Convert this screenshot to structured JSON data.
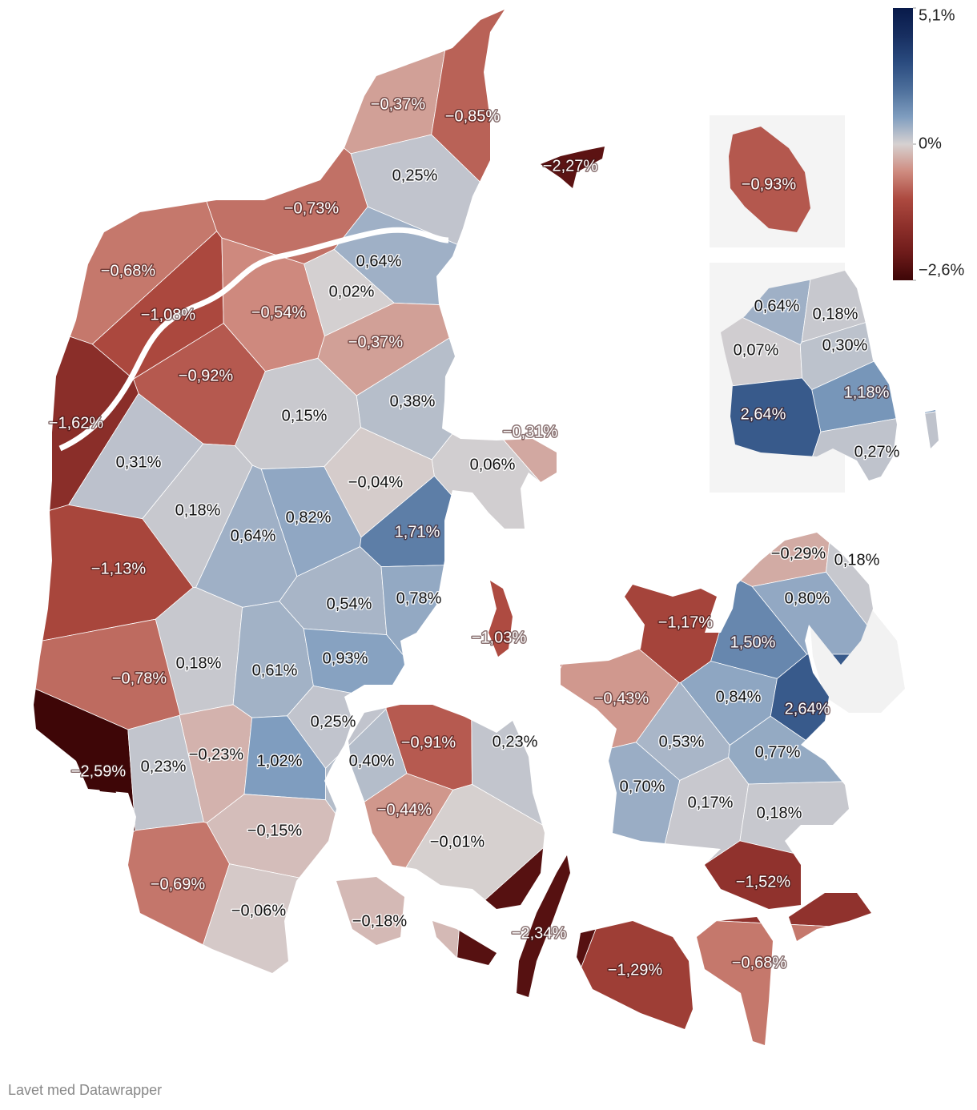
{
  "map": {
    "regions": [
      {
        "label": "−0,37%",
        "value": -0.37
      },
      {
        "label": "−0,85%",
        "value": -0.85
      },
      {
        "label": "0,25%",
        "value": 0.25
      },
      {
        "label": "−2,27%",
        "value": -2.27
      },
      {
        "label": "−0,93%",
        "value": -0.93
      },
      {
        "label": "−0,73%",
        "value": -0.73
      },
      {
        "label": "−0,68%",
        "value": -0.68
      },
      {
        "label": "0,64%",
        "value": 0.64
      },
      {
        "label": "−1,08%",
        "value": -1.08
      },
      {
        "label": "−0,54%",
        "value": -0.54
      },
      {
        "label": "0,02%",
        "value": 0.02
      },
      {
        "label": "−0,37%",
        "value": -0.37
      },
      {
        "label": "0,64%",
        "value": 0.64
      },
      {
        "label": "0,18%",
        "value": 0.18
      },
      {
        "label": "0,07%",
        "value": 0.07
      },
      {
        "label": "0,30%",
        "value": 0.3
      },
      {
        "label": "−0,92%",
        "value": -0.92
      },
      {
        "label": "0,38%",
        "value": 0.38
      },
      {
        "label": "1,18%",
        "value": 1.18
      },
      {
        "label": "−1,62%",
        "value": -1.62
      },
      {
        "label": "0,15%",
        "value": 0.15
      },
      {
        "label": "2,64%",
        "value": 2.64
      },
      {
        "label": "−0,31%",
        "value": -0.31
      },
      {
        "label": "0,27%",
        "value": 0.27
      },
      {
        "label": "0,31%",
        "value": 0.31
      },
      {
        "label": "0,06%",
        "value": 0.06
      },
      {
        "label": "−0,04%",
        "value": -0.04
      },
      {
        "label": "0,18%",
        "value": 0.18
      },
      {
        "label": "0,82%",
        "value": 0.82
      },
      {
        "label": "1,71%",
        "value": 1.71
      },
      {
        "label": "0,64%",
        "value": 0.64
      },
      {
        "label": "−0,29%",
        "value": -0.29
      },
      {
        "label": "0,18%",
        "value": 0.18
      },
      {
        "label": "−1,13%",
        "value": -1.13
      },
      {
        "label": "0,54%",
        "value": 0.54
      },
      {
        "label": "0,78%",
        "value": 0.78
      },
      {
        "label": "0,80%",
        "value": 0.8
      },
      {
        "label": "−1,17%",
        "value": -1.17
      },
      {
        "label": "−1,03%",
        "value": -1.03
      },
      {
        "label": "1,50%",
        "value": 1.5
      },
      {
        "label": "0,18%",
        "value": 0.18
      },
      {
        "label": "0,61%",
        "value": 0.61
      },
      {
        "label": "0,93%",
        "value": 0.93
      },
      {
        "label": "−0,78%",
        "value": -0.78
      },
      {
        "label": "0,84%",
        "value": 0.84
      },
      {
        "label": "−0,43%",
        "value": -0.43
      },
      {
        "label": "2,64%",
        "value": 2.64
      },
      {
        "label": "0,25%",
        "value": 0.25
      },
      {
        "label": "−0,91%",
        "value": -0.91
      },
      {
        "label": "0,23%",
        "value": 0.23
      },
      {
        "label": "0,53%",
        "value": 0.53
      },
      {
        "label": "−0,23%",
        "value": -0.23
      },
      {
        "label": "1,02%",
        "value": 1.02
      },
      {
        "label": "0,77%",
        "value": 0.77
      },
      {
        "label": "−2,59%",
        "value": -2.59
      },
      {
        "label": "0,23%",
        "value": 0.23
      },
      {
        "label": "0,40%",
        "value": 0.4
      },
      {
        "label": "0,70%",
        "value": 0.7
      },
      {
        "label": "−0,44%",
        "value": -0.44
      },
      {
        "label": "0,17%",
        "value": 0.17
      },
      {
        "label": "0,18%",
        "value": 0.18
      },
      {
        "label": "−0,15%",
        "value": -0.15
      },
      {
        "label": "−0,01%",
        "value": -0.01
      },
      {
        "label": "−0,69%",
        "value": -0.69
      },
      {
        "label": "−1,52%",
        "value": -1.52
      },
      {
        "label": "−0,06%",
        "value": -0.06
      },
      {
        "label": "−0,18%",
        "value": -0.18
      },
      {
        "label": "−2,34%",
        "value": -2.34
      },
      {
        "label": "−1,29%",
        "value": -1.29
      },
      {
        "label": "−0,68%",
        "value": -0.68
      }
    ],
    "legend": {
      "ticks": [
        {
          "value": 5.1,
          "label": "5,1%"
        },
        {
          "value": 0,
          "label": "0%"
        },
        {
          "value": -2.6,
          "label": "−2,6%"
        }
      ],
      "colors_negative": [
        "#3d0607",
        "#6e1b1a",
        "#8e302b",
        "#ad4a40",
        "#cf8c80",
        "#d6d1d1"
      ],
      "colors_positive": [
        "#d6d1d1",
        "#7f9dbf",
        "#4d6f9b",
        "#2a4b7f",
        "#172e60",
        "#081a4a"
      ]
    }
  },
  "footer": "Lavet med Datawrapper"
}
